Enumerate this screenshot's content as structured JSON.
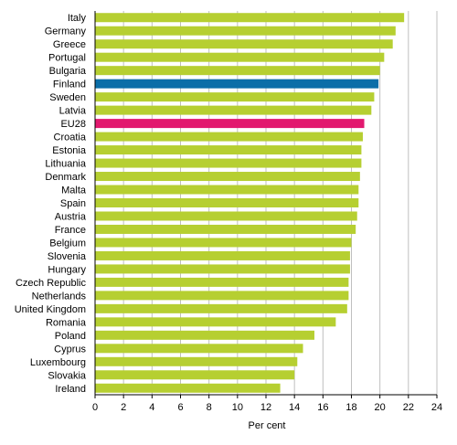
{
  "chart_data": {
    "type": "bar",
    "orientation": "horizontal",
    "title": "",
    "xlabel": "Per cent",
    "ylabel": "",
    "xlim": [
      0,
      24
    ],
    "xticks": [
      0,
      2,
      4,
      6,
      8,
      10,
      12,
      14,
      16,
      18,
      20,
      22,
      24
    ],
    "grid": true,
    "legend": "none",
    "categories": [
      "Italy",
      "Germany",
      "Greece",
      "Portugal",
      "Bulgaria",
      "Finland",
      "Sweden",
      "Latvia",
      "EU28",
      "Croatia",
      "Estonia",
      "Lithuania",
      "Denmark",
      "Malta",
      "Spain",
      "Austria",
      "France",
      "Belgium",
      "Slovenia",
      "Hungary",
      "Czech Republic",
      "Netherlands",
      "United Kingdom",
      "Romania",
      "Poland",
      "Cyprus",
      "Luxembourg",
      "Slovakia",
      "Ireland"
    ],
    "values": [
      21.7,
      21.1,
      20.9,
      20.3,
      20.0,
      19.9,
      19.6,
      19.4,
      18.9,
      18.8,
      18.7,
      18.7,
      18.6,
      18.5,
      18.5,
      18.4,
      18.3,
      18.0,
      17.9,
      17.9,
      17.8,
      17.8,
      17.7,
      16.9,
      15.4,
      14.6,
      14.2,
      14.0,
      13.0
    ],
    "colors": {
      "default": "#b6cf31",
      "Finland": "#0b6ea8",
      "EU28": "#e2196f",
      "grid": "#bfbfbf",
      "axis": "#000000"
    }
  }
}
